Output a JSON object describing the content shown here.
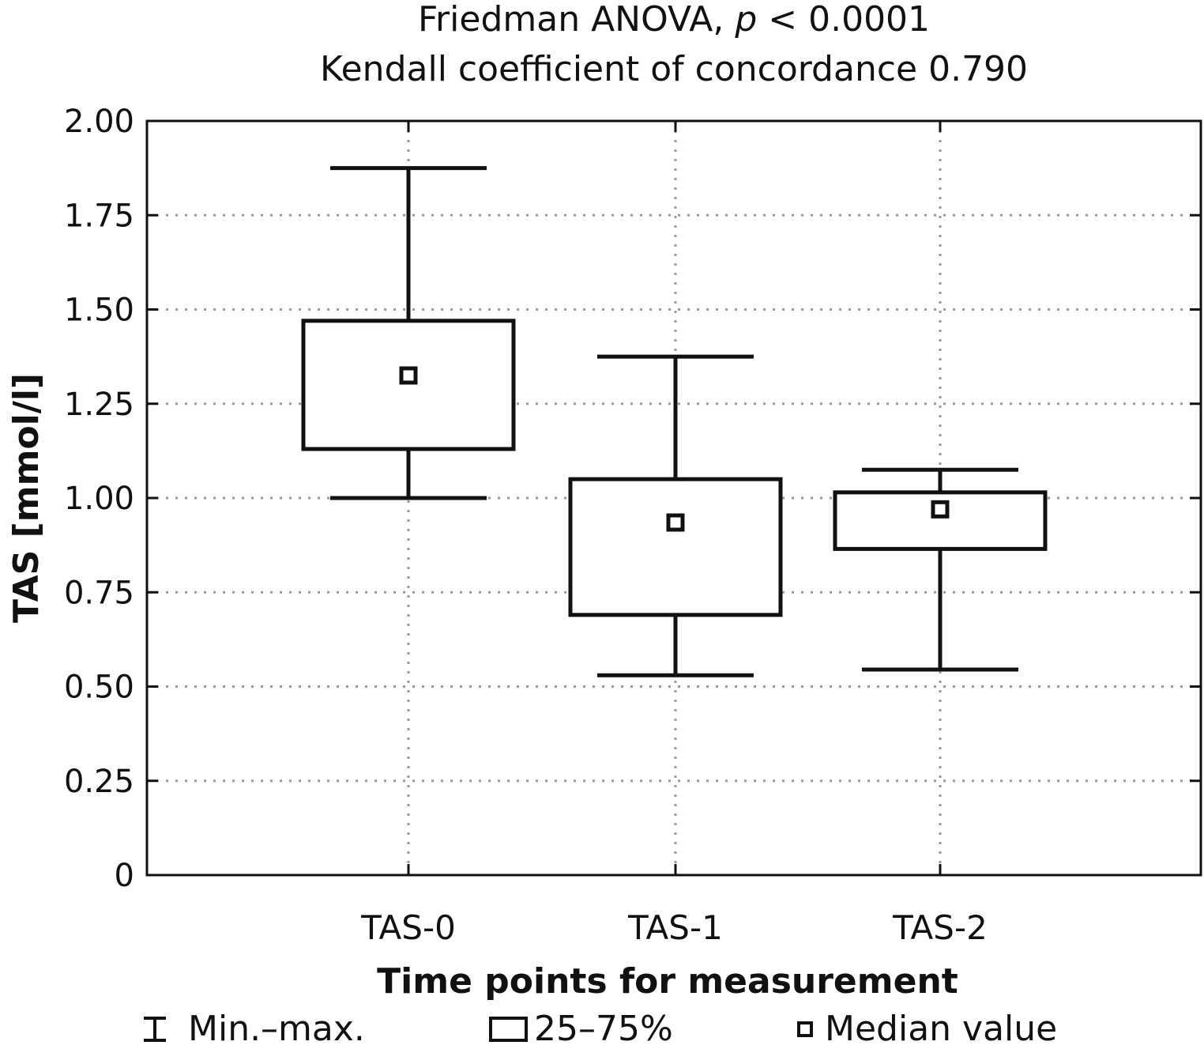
{
  "chart_data": {
    "type": "boxplot",
    "title": "Friedman ANOVA, p < 0.0001",
    "title_parts": {
      "prefix": "Friedman ANOVA, ",
      "italic": "p",
      "suffix": " < 0.0001"
    },
    "subtitle": "Kendall coefficient of concordance 0.790",
    "xlabel": "Time points for measurement",
    "ylabel": "TAS [mmol/l]",
    "ylim": [
      0,
      2.0
    ],
    "yticks": [
      "0",
      "0.25",
      "0.50",
      "0.75",
      "1.00",
      "1.25",
      "1.50",
      "1.75",
      "2.00"
    ],
    "ytick_values": [
      0,
      0.25,
      0.5,
      0.75,
      1.0,
      1.25,
      1.5,
      1.75,
      2.0
    ],
    "grid": true,
    "categories": [
      "TAS-0",
      "TAS-1",
      "TAS-2"
    ],
    "boxes": [
      {
        "name": "TAS-0",
        "min": 1.0,
        "q1": 1.13,
        "median": 1.325,
        "q3": 1.47,
        "max": 1.875
      },
      {
        "name": "TAS-1",
        "min": 0.53,
        "q1": 0.69,
        "median": 0.935,
        "q3": 1.05,
        "max": 1.375
      },
      {
        "name": "TAS-2",
        "min": 0.545,
        "q1": 0.865,
        "median": 0.97,
        "q3": 1.015,
        "max": 1.075
      }
    ],
    "legend": {
      "placement": "bottom",
      "items": [
        "Min.–max.",
        "25–75%",
        "Median value"
      ]
    }
  }
}
